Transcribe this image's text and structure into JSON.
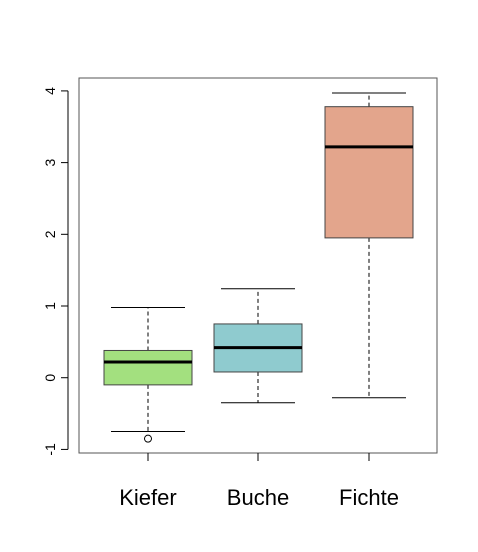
{
  "chart_data": {
    "type": "box",
    "categories": [
      "Kiefer",
      "Buche",
      "Fichte"
    ],
    "colors": [
      "#a3e07f",
      "#8fcbcf",
      "#e3a58c"
    ],
    "boxes": [
      {
        "name": "Kiefer",
        "whisker_low": -0.75,
        "q1": -0.1,
        "median": 0.22,
        "q3": 0.38,
        "whisker_high": 0.98,
        "outliers": [
          -0.85
        ]
      },
      {
        "name": "Buche",
        "whisker_low": -0.35,
        "q1": 0.08,
        "median": 0.42,
        "q3": 0.75,
        "whisker_high": 1.24,
        "outliers": []
      },
      {
        "name": "Fichte",
        "whisker_low": -0.28,
        "q1": 1.95,
        "median": 3.22,
        "q3": 3.78,
        "whisker_high": 3.97,
        "outliers": []
      }
    ],
    "y_ticks": [
      -1,
      0,
      1,
      2,
      3,
      4
    ],
    "y_tick_labels": [
      "-1",
      "0",
      "1",
      "2",
      "3",
      "4"
    ],
    "ylim": [
      -1.05,
      4.18
    ],
    "title": "",
    "xlabel": "",
    "ylabel": "",
    "grid": false,
    "legend": "none"
  }
}
